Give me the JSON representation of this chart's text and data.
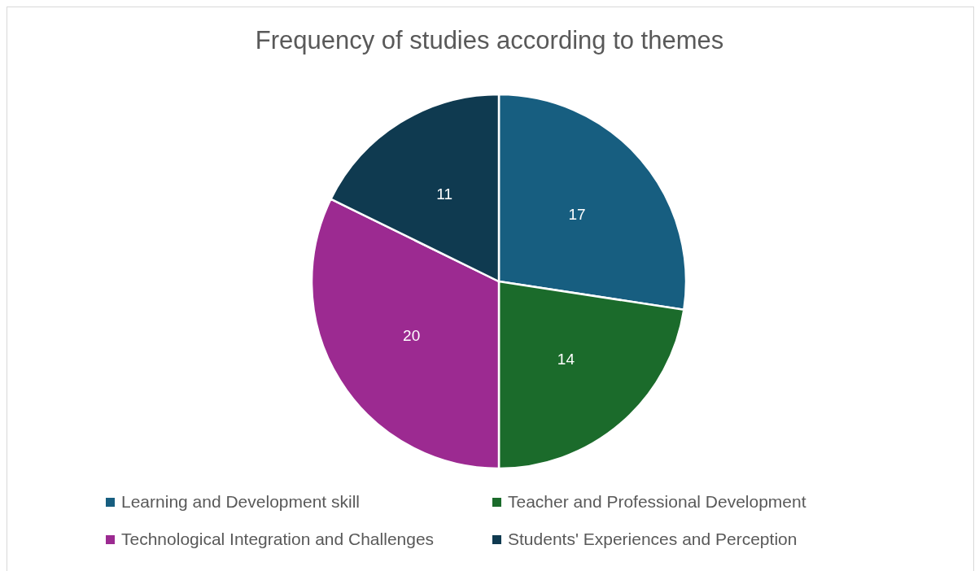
{
  "chart_data": {
    "type": "pie",
    "title": "Frequency of studies according to themes",
    "categories": [
      "Learning and Development skill",
      "Teacher and Professional Development",
      "Technological Integration and Challenges",
      "Students' Experiences and Perception"
    ],
    "values": [
      17,
      14,
      20,
      11
    ],
    "colors": [
      "#175e80",
      "#1b6b2b",
      "#9c2a91",
      "#0f3a50"
    ],
    "data_labels": true,
    "legend": "bottom"
  }
}
